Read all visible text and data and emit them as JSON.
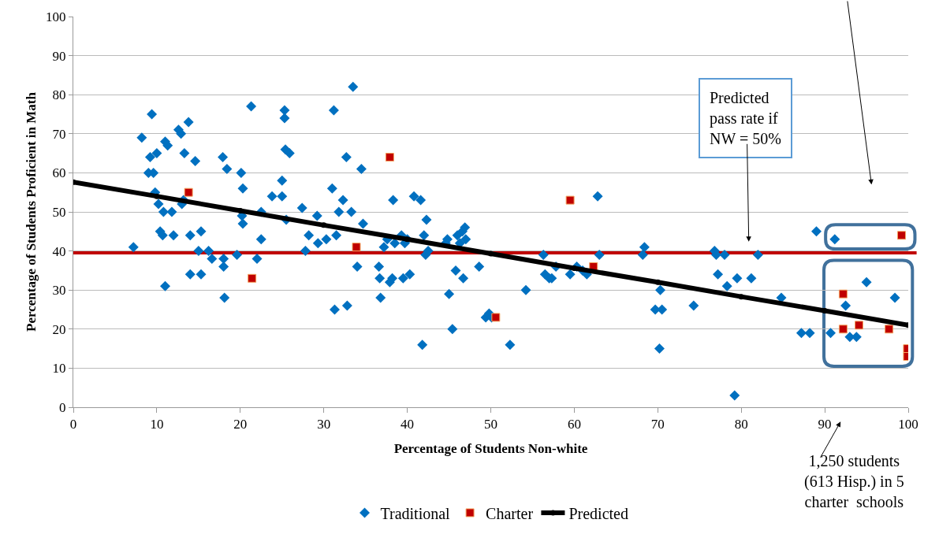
{
  "chart_data": {
    "type": "scatter",
    "xlabel": "Percentage of Students Non-white",
    "ylabel": "Percentage of Students Proficient in Math",
    "xlim": [
      0,
      100
    ],
    "ylim": [
      0,
      100
    ],
    "xticks": [
      0,
      10,
      20,
      30,
      40,
      50,
      60,
      70,
      80,
      90,
      100
    ],
    "yticks": [
      0,
      10,
      20,
      30,
      40,
      50,
      60,
      70,
      80,
      90,
      100
    ],
    "grid": "y",
    "legend": "bottom",
    "series": [
      {
        "name": "Traditional",
        "color": "#0070c0",
        "marker": "diamond",
        "x": [
          7.2,
          8.2,
          9,
          9.2,
          9.4,
          9.6,
          9.8,
          10,
          10.2,
          10.4,
          10.7,
          10.8,
          11,
          11,
          11.3,
          11.8,
          12,
          12.6,
          12.9,
          13,
          13.2,
          13.3,
          13.8,
          14,
          14,
          14.6,
          15,
          15.3,
          15.3,
          16.2,
          16.6,
          17.9,
          18,
          18,
          18.1,
          18.4,
          19.6,
          20.1,
          20.3,
          20.2,
          20.3,
          21.3,
          22,
          22.5,
          22.5,
          23.8,
          25,
          25,
          25.3,
          25.3,
          25.4,
          25.9,
          25.5,
          27.4,
          27.8,
          28.2,
          29.2,
          29.3,
          30.3,
          31,
          31.2,
          31.3,
          31.5,
          31.8,
          32.3,
          32.7,
          32.8,
          33.3,
          33.5,
          34,
          34.5,
          34.7,
          36.6,
          36.7,
          36.8,
          37.2,
          37.6,
          37.9,
          38.3,
          38.2,
          38.5,
          39.3,
          39.5,
          39.7,
          40,
          40.3,
          40.8,
          41.6,
          41.8,
          42,
          42.2,
          42.3,
          42.5,
          44.6,
          44.8,
          45,
          45.4,
          45.8,
          46,
          46.3,
          46.6,
          46.9,
          46.7,
          47,
          48.6,
          49.4,
          49.8,
          50.1,
          52.3,
          54.2,
          56.3,
          56.5,
          57,
          57.3,
          57.8,
          59.5,
          60.3,
          61,
          61.5,
          62.8,
          63,
          68.2,
          68.4,
          69.7,
          70.3,
          70.2,
          70.5,
          74.3,
          76.8,
          77,
          77.2,
          78,
          78.3,
          79.2,
          79.5,
          81.2,
          82,
          84.8,
          87.2,
          88.2,
          89,
          90.7,
          91.2,
          92.5,
          93,
          93.8,
          95,
          98.4
        ],
        "values": [
          41,
          69,
          60,
          64,
          75,
          60,
          55,
          65,
          52,
          45,
          44,
          50,
          68,
          31,
          67,
          50,
          44,
          71,
          70,
          52,
          53,
          65,
          73,
          44,
          34,
          63,
          40,
          45,
          34,
          40,
          38,
          64,
          36,
          38,
          28,
          61,
          39,
          60,
          56,
          49,
          47,
          77,
          38,
          43,
          50,
          54,
          54,
          58,
          76,
          74,
          66,
          65,
          48,
          51,
          40,
          44,
          49,
          42,
          43,
          56,
          76,
          25,
          44,
          50,
          53,
          64,
          26,
          50,
          82,
          36,
          61,
          47,
          36,
          33,
          28,
          41,
          43,
          32,
          53,
          33,
          42,
          44,
          33,
          42,
          43,
          34,
          54,
          53,
          16,
          44,
          39,
          48,
          40,
          42,
          43,
          29,
          20,
          35,
          44,
          42,
          45,
          46,
          33,
          43,
          36,
          23,
          24,
          23,
          16,
          30,
          39,
          34,
          33,
          33,
          36,
          34,
          36,
          35,
          34,
          54,
          39,
          39,
          41,
          25,
          30,
          15,
          25,
          26,
          40,
          39,
          34,
          39,
          31,
          3,
          33,
          33,
          39,
          28,
          19,
          19,
          45,
          19,
          43,
          26,
          18,
          18,
          32,
          28
        ]
      },
      {
        "name": "Charter",
        "color": "#c00000",
        "marker": "square",
        "x": [
          13.8,
          21.4,
          33.9,
          37.9,
          50.6,
          59.5,
          62.3,
          92.2,
          92.2,
          94.1,
          97.7,
          99.2,
          99.9,
          99.9
        ],
        "values": [
          55,
          33,
          41,
          64,
          23,
          53,
          36,
          29,
          20,
          21,
          20,
          44,
          15,
          13
        ]
      },
      {
        "name": "Predicted",
        "type": "line",
        "color": "#000000",
        "marker": "circle",
        "x": [
          0,
          10,
          20,
          30,
          40,
          50,
          60,
          70,
          80,
          90,
          100
        ],
        "values": [
          57.6,
          54,
          50.3,
          46.6,
          43,
          39.3,
          35.6,
          32,
          28.3,
          24.7,
          21
        ]
      }
    ],
    "ref_lines": [
      {
        "axis": "y",
        "value": 39.5,
        "color": "#c00000"
      }
    ],
    "annotations": [
      "Predicted\npass rate if\nNW = 50%",
      "1,250 students\n(613 Hisp.) in 5\ncharter  schools"
    ]
  }
}
